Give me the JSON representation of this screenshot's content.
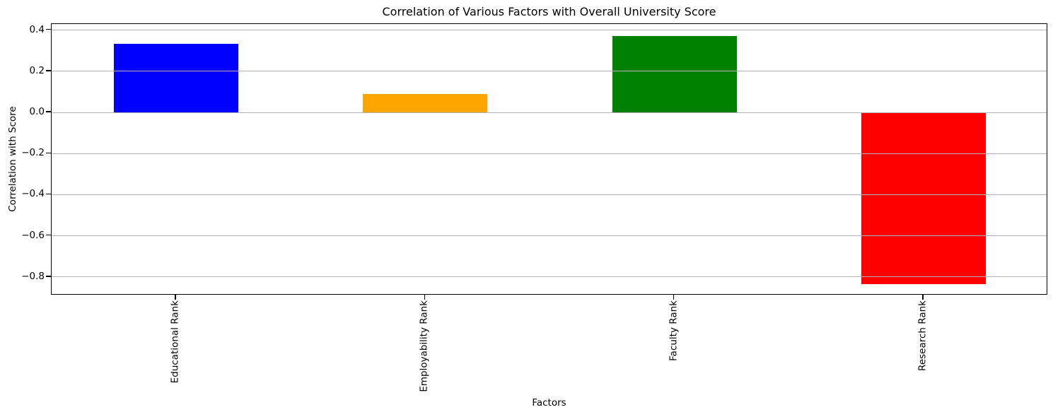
{
  "figure": {
    "background": "#ffffff",
    "text_color": "#000000",
    "spine_color": "#000000"
  },
  "chart_data": {
    "type": "bar",
    "title": "Correlation of Various Factors with Overall University Score",
    "xlabel": "Factors",
    "ylabel": "Correlation with Score",
    "categories": [
      "Educational Rank",
      "Employability Rank",
      "Faculty Rank",
      "Research Rank"
    ],
    "values": [
      0.335,
      0.09,
      0.37,
      -0.835
    ],
    "bar_colors": [
      "#0000ff",
      "#ffa500",
      "#008000",
      "#ff0000"
    ],
    "bar_width_fraction": 0.5,
    "ylim": [
      -0.89,
      0.43
    ],
    "yticks": [
      0.4,
      0.2,
      0.0,
      -0.2,
      -0.4,
      -0.6,
      -0.8
    ],
    "ytick_labels": [
      "0.4",
      "0.2",
      "0.0",
      "−0.2",
      "−0.4",
      "−0.6",
      "−0.8"
    ],
    "grid": "horizontal",
    "grid_color": "#b0b0b0",
    "grid_above_bars": true,
    "legend": "none",
    "x_tick_label_rotation": 90
  }
}
